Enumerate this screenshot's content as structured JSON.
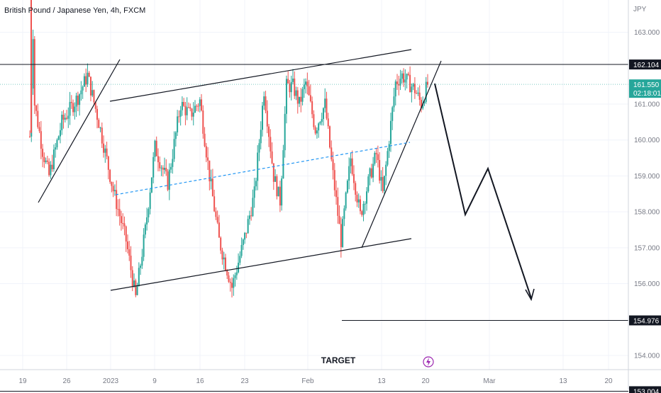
{
  "header": {
    "title": "British Pound / Japanese Yen, 4h, FXCM",
    "currency": "JPY"
  },
  "price_axis": {
    "ticks": [
      "163.000",
      "161.000",
      "160.000",
      "159.000",
      "158.000",
      "157.000",
      "156.000",
      "154.000"
    ],
    "labels": [
      {
        "text": "162.104",
        "style": "dark"
      },
      {
        "text": "161.550",
        "subtext": "02:18:01",
        "style": "teal"
      },
      {
        "text": "154.976",
        "style": "dark"
      },
      {
        "text": "153.004",
        "style": "dark"
      }
    ]
  },
  "time_axis": {
    "ticks": [
      "19",
      "26",
      "2023",
      "9",
      "16",
      "23",
      "Feb",
      "13",
      "20",
      "Mar",
      "13",
      "20"
    ]
  },
  "annotations": {
    "target_label": "TARGET"
  },
  "colors": {
    "up": "#26a69a",
    "down": "#ef5350",
    "trend_line": "#131722",
    "midline": "#2196f3",
    "last_price": "#26a69a",
    "lightning": "#9c27b0"
  },
  "chart_data": {
    "type": "candlestick",
    "title": "British Pound / Japanese Yen, 4h, FXCM",
    "x_ticks": [
      "19",
      "26",
      "2023",
      "9",
      "16",
      "23",
      "Feb",
      "13",
      "20",
      "Mar",
      "13",
      "20"
    ],
    "y_ticks": [
      163,
      161,
      160,
      159,
      158,
      157,
      156,
      154
    ],
    "ylim": [
      152.8,
      163.9
    ],
    "price_path": [
      {
        "i": 0,
        "p": 160.1
      },
      {
        "i": 2,
        "p": 163.0
      },
      {
        "i": 3,
        "p": 161.0
      },
      {
        "i": 8,
        "p": 159.7
      },
      {
        "i": 12,
        "p": 159.0
      },
      {
        "i": 20,
        "p": 160.5
      },
      {
        "i": 30,
        "p": 161.2
      },
      {
        "i": 36,
        "p": 161.8
      },
      {
        "i": 43,
        "p": 160.5
      },
      {
        "i": 52,
        "p": 158.6
      },
      {
        "i": 60,
        "p": 157.2
      },
      {
        "i": 66,
        "p": 155.6
      },
      {
        "i": 72,
        "p": 157.5
      },
      {
        "i": 78,
        "p": 159.8
      },
      {
        "i": 86,
        "p": 158.8
      },
      {
        "i": 94,
        "p": 161.0
      },
      {
        "i": 100,
        "p": 160.7
      },
      {
        "i": 106,
        "p": 161.1
      },
      {
        "i": 112,
        "p": 159.0
      },
      {
        "i": 118,
        "p": 157.2
      },
      {
        "i": 126,
        "p": 155.9
      },
      {
        "i": 134,
        "p": 157.3
      },
      {
        "i": 140,
        "p": 158.5
      },
      {
        "i": 146,
        "p": 161.4
      },
      {
        "i": 152,
        "p": 159.0
      },
      {
        "i": 156,
        "p": 158.3
      },
      {
        "i": 160,
        "p": 161.5
      },
      {
        "i": 164,
        "p": 161.5
      },
      {
        "i": 168,
        "p": 161.0
      },
      {
        "i": 172,
        "p": 161.6
      },
      {
        "i": 178,
        "p": 160.3
      },
      {
        "i": 184,
        "p": 161.0
      },
      {
        "i": 188,
        "p": 159.4
      },
      {
        "i": 194,
        "p": 157.2
      },
      {
        "i": 200,
        "p": 159.5
      },
      {
        "i": 206,
        "p": 157.9
      },
      {
        "i": 212,
        "p": 159.0
      },
      {
        "i": 216,
        "p": 159.6
      },
      {
        "i": 220,
        "p": 158.5
      },
      {
        "i": 228,
        "p": 161.6
      },
      {
        "i": 232,
        "p": 161.8
      },
      {
        "i": 240,
        "p": 161.4
      },
      {
        "i": 244,
        "p": 161.0
      },
      {
        "i": 248,
        "p": 161.55
      }
    ],
    "horizontal_levels": [
      162.104,
      154.976,
      153.004
    ],
    "last_price": 161.55,
    "countdown": "02:18:01"
  }
}
